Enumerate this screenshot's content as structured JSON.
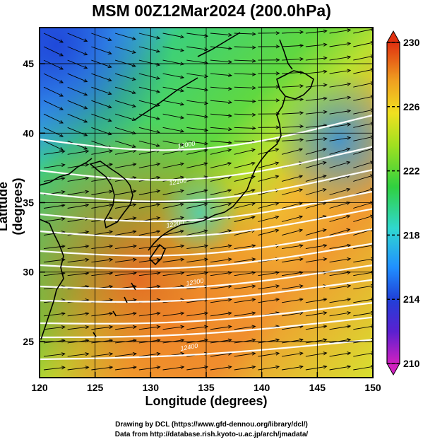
{
  "title": "MSM 00Z12Mar2024 (200.0hPa)",
  "xlabel": "Longitude (degrees)",
  "ylabel": "Latitude  (degrees)",
  "credits": [
    "Drawing by DCL (https://www.gfd-dennou.org/library/dcl/)",
    "Data from http://database.rish.kyoto-u.ac.jp/arch/jmadata/"
  ],
  "map": {
    "lon_range": [
      120,
      150
    ],
    "lat_range": [
      22.4,
      47.6
    ],
    "x_ticks": [
      120,
      125,
      130,
      135,
      140,
      145,
      150
    ],
    "y_ticks": [
      25,
      30,
      35,
      40,
      45
    ],
    "x_tick_labels": [
      "120",
      "125",
      "130",
      "135",
      "140",
      "145",
      "150"
    ],
    "y_tick_labels": [
      "25",
      "30",
      "35",
      "40",
      "45"
    ],
    "grid_lines": true,
    "shading_variable": "temperature",
    "vector_field": "wind streamlines/arrows",
    "contour_labels": [
      "12000",
      "12100",
      "12200",
      "12300",
      "12400"
    ]
  },
  "colorbar": {
    "min": 210,
    "max": 230,
    "tick_labels": [
      "230",
      "226",
      "222",
      "218",
      "214",
      "210"
    ],
    "colors": [
      "#d020c0",
      "#3030d0",
      "#2090ff",
      "#30d8d0",
      "#30d040",
      "#a0e020",
      "#f0e020",
      "#f0a020",
      "#f06020",
      "#e03010"
    ]
  }
}
